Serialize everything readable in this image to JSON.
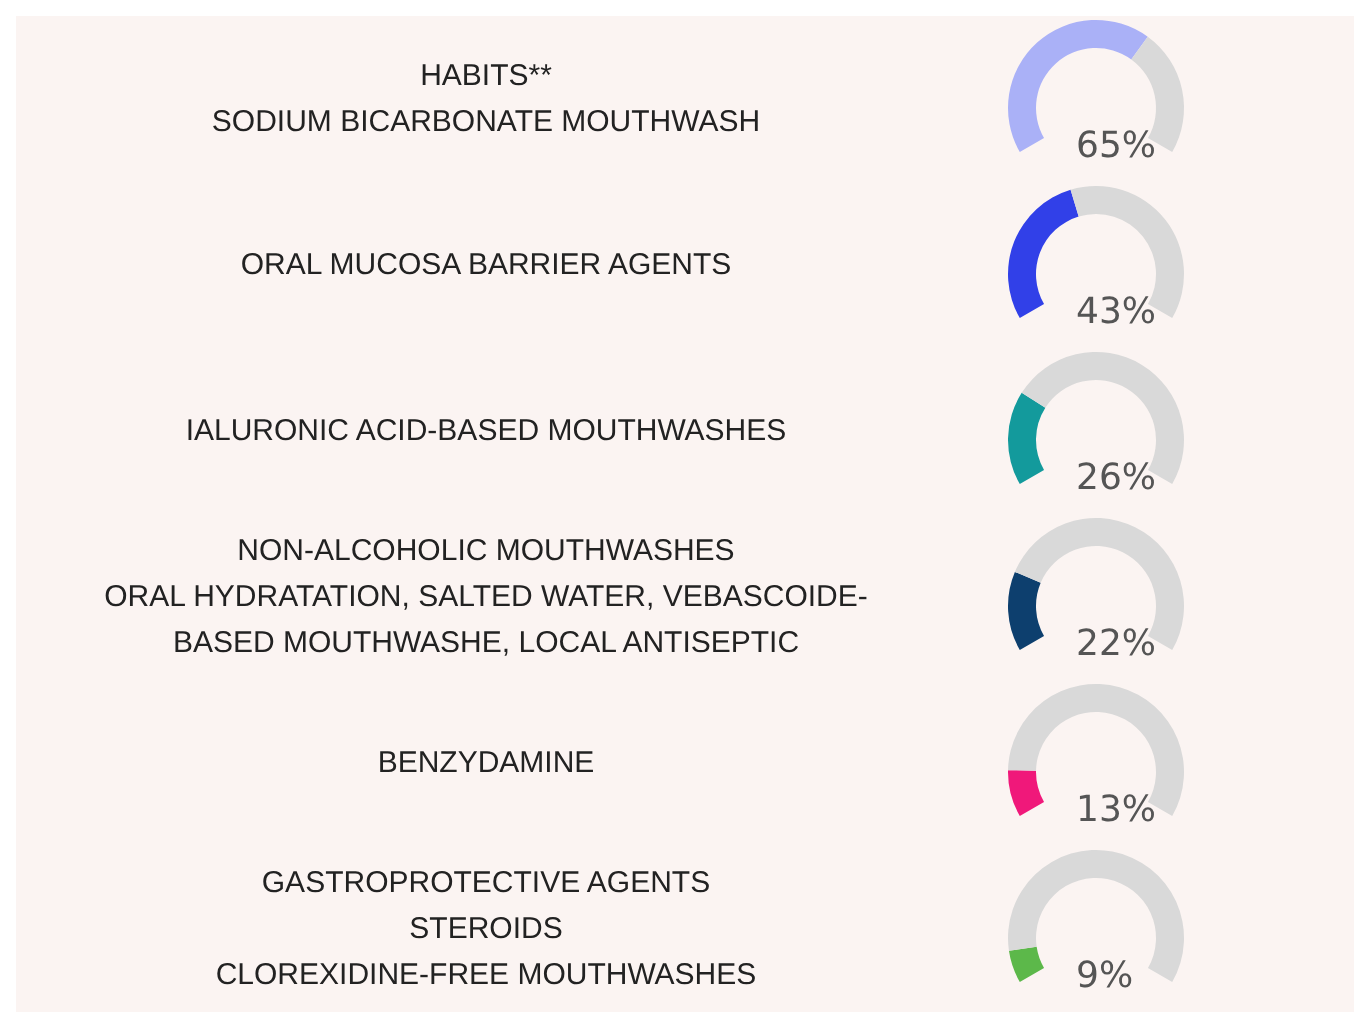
{
  "chart_data": [
    {
      "type": "donut",
      "title": "HABITS**\nSODIUM BICARBONATE MOUTHWASH",
      "categories": [
        null,
        null
      ],
      "values": [
        65,
        35
      ],
      "colors": [
        "#aab1f7",
        "#d9d9d9"
      ],
      "annotations": [
        "65%"
      ]
    },
    {
      "type": "donut",
      "title": "ORAL MUCOSA BARRIER AGENTS",
      "categories": [
        null,
        null
      ],
      "values": [
        43,
        57
      ],
      "colors": [
        "#3140e8",
        "#d9d9d9"
      ],
      "annotations": [
        "43%"
      ]
    },
    {
      "type": "donut",
      "title": "IALURONIC ACID-BASED MOUTHWASHES",
      "categories": [
        null,
        null
      ],
      "values": [
        26,
        74
      ],
      "colors": [
        "#139a9c",
        "#d9d9d9"
      ],
      "annotations": [
        "26%"
      ]
    },
    {
      "type": "donut",
      "title": "NON-ALCOHOLIC MOUTHWASHES\nORAL HYDRATATION, SALTED WATER, VEBASCOIDE-\nBASED MOUTHWASHE, LOCAL ANTISEPTIC",
      "categories": [
        null,
        null
      ],
      "values": [
        22,
        78
      ],
      "colors": [
        "#0d3f6e",
        "#d9d9d9"
      ],
      "annotations": [
        "22%"
      ]
    },
    {
      "type": "donut",
      "title": "BENZYDAMINE",
      "categories": [
        null,
        null
      ],
      "values": [
        13,
        87
      ],
      "colors": [
        "#f0187a",
        "#d9d9d9"
      ],
      "annotations": [
        "13%"
      ]
    },
    {
      "type": "donut",
      "title": "GASTROPROTECTIVE AGENTS\nSTEROIDS\nCLOREXIDINE-FREE MOUTHWASHES",
      "categories": [
        null,
        null
      ],
      "values": [
        9,
        91
      ],
      "colors": [
        "#5cb84a",
        "#d9d9d9"
      ],
      "annotations": [
        "9%"
      ]
    }
  ]
}
